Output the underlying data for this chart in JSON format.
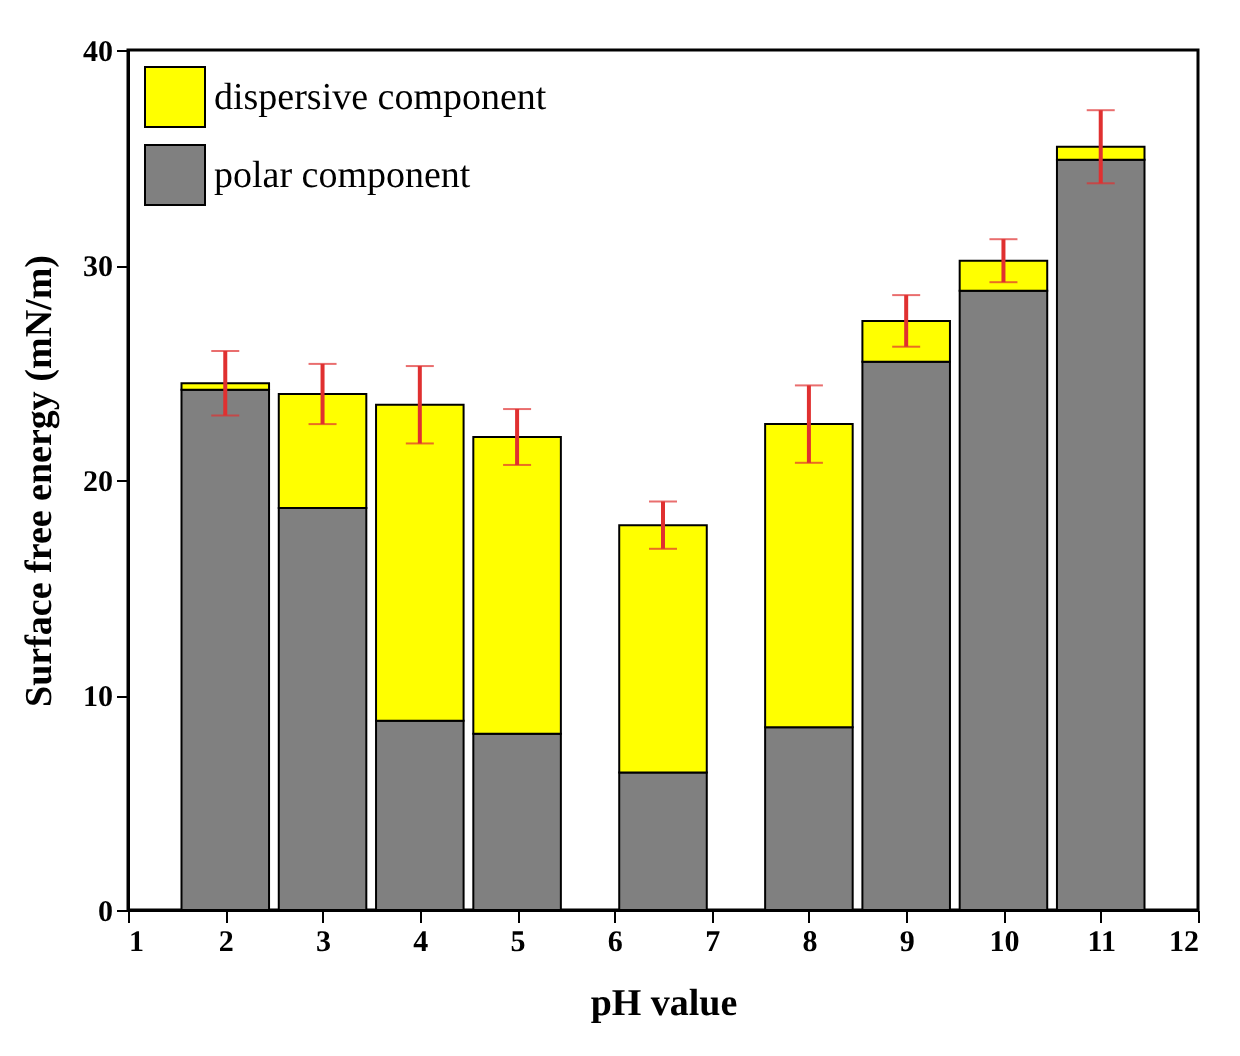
{
  "chart_data": {
    "type": "bar",
    "stacked": true,
    "xlabel": "pH value",
    "ylabel": "Surface free energy (mN/m)",
    "x": [
      2,
      3,
      4,
      5,
      6.5,
      8,
      9,
      10,
      11
    ],
    "series": [
      {
        "name": "polar component",
        "color": "#808080",
        "values": [
          24.2,
          18.7,
          8.8,
          8.2,
          6.4,
          8.5,
          25.5,
          28.8,
          34.9
        ]
      },
      {
        "name": "dispersive component",
        "color": "#ffff00",
        "values": [
          0.3,
          5.3,
          14.7,
          13.8,
          11.5,
          14.1,
          1.9,
          1.4,
          0.6
        ],
        "errors": [
          1.5,
          1.4,
          1.8,
          1.3,
          1.1,
          1.8,
          1.2,
          1,
          1.7
        ]
      }
    ],
    "xlim": [
      1,
      12
    ],
    "xticks": [
      1,
      2,
      3,
      4,
      5,
      6,
      7,
      8,
      9,
      10,
      11,
      12
    ],
    "ylim": [
      0,
      40
    ],
    "yticks": [
      0,
      10,
      20,
      30,
      40
    ],
    "grid": false,
    "legend": "top left"
  }
}
